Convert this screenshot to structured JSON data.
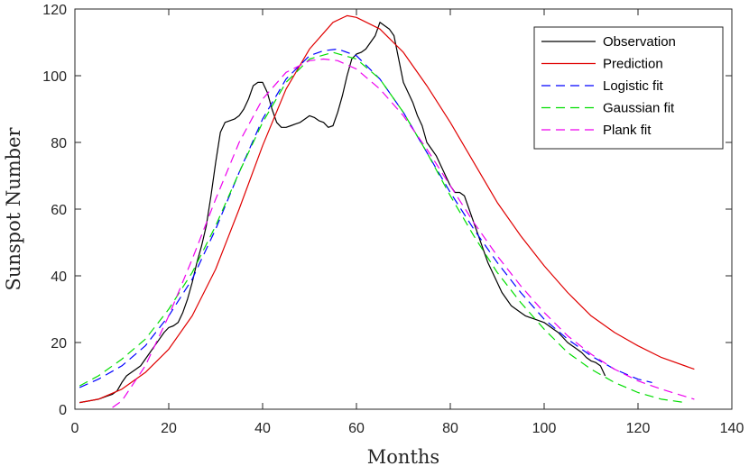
{
  "chart_data": {
    "type": "line",
    "title": "",
    "xlabel": "Months",
    "ylabel": "Sunspot Number",
    "xlim": [
      0,
      140
    ],
    "ylim": [
      0,
      120
    ],
    "xticks": [
      "0",
      "20",
      "40",
      "60",
      "80",
      "100",
      "120",
      "140"
    ],
    "yticks": [
      "0",
      "20",
      "40",
      "60",
      "80",
      "100",
      "120"
    ],
    "grid": false,
    "legend_position": "top-right",
    "series": [
      {
        "name": "Observation",
        "color": "#000000",
        "style": "solid",
        "x": [
          1,
          3,
          5,
          7,
          8,
          9,
          10,
          11,
          12,
          13,
          14,
          15,
          16,
          17,
          18,
          19,
          20,
          21,
          22,
          23,
          24,
          25,
          26,
          27,
          28,
          29,
          30,
          31,
          32,
          33,
          34,
          35,
          36,
          37,
          38,
          39,
          40,
          41,
          42,
          43,
          44,
          45,
          46,
          47,
          48,
          49,
          50,
          51,
          52,
          53,
          54,
          55,
          56,
          57,
          58,
          59,
          60,
          61,
          62,
          63,
          64,
          65,
          66,
          67,
          68,
          69,
          70,
          71,
          72,
          73,
          74,
          75,
          76,
          77,
          78,
          79,
          80,
          81,
          82,
          83,
          84,
          85,
          86,
          87,
          88,
          89,
          90,
          91,
          92,
          93,
          94,
          95,
          96,
          97,
          98,
          99,
          100,
          101,
          102,
          103,
          104,
          105,
          106,
          107,
          108,
          109,
          110,
          111,
          112,
          113
        ],
        "y": [
          2,
          2.5,
          3,
          4,
          4.5,
          5.5,
          8,
          10,
          11,
          12,
          13,
          15,
          17,
          19,
          21,
          23,
          24.5,
          25,
          26,
          29,
          33,
          38,
          44,
          49,
          55,
          64,
          74,
          83,
          86,
          86.5,
          87,
          88,
          90,
          93,
          97,
          98,
          98,
          95,
          90,
          86,
          84.5,
          84.5,
          85,
          85.5,
          86,
          87,
          88,
          87.5,
          86.5,
          86,
          84.5,
          85,
          89,
          94,
          100,
          105,
          106.5,
          107,
          108,
          110,
          112,
          116,
          115,
          114,
          112,
          105,
          98,
          95,
          92,
          88,
          85,
          80,
          78,
          76,
          73,
          70,
          67,
          65,
          65,
          64,
          60,
          56,
          52,
          48,
          44,
          41,
          38,
          35,
          33,
          31,
          30,
          29,
          28,
          27.5,
          27,
          26.5,
          26,
          25,
          24,
          23,
          21.5,
          20,
          19,
          18,
          17,
          15.5,
          14.5,
          14,
          13,
          10
        ]
      },
      {
        "name": "Prediction",
        "color": "#e00000",
        "style": "solid",
        "x": [
          1,
          5,
          10,
          15,
          20,
          25,
          30,
          35,
          40,
          45,
          50,
          55,
          58,
          60,
          65,
          70,
          75,
          80,
          85,
          90,
          95,
          100,
          105,
          110,
          115,
          120,
          125,
          132
        ],
        "y": [
          2,
          3,
          6,
          11,
          18,
          28,
          42,
          60,
          79,
          96,
          108,
          116,
          118,
          117.5,
          114,
          107,
          97,
          86,
          74,
          62,
          52,
          43,
          35,
          28,
          23,
          19,
          15.5,
          12
        ]
      },
      {
        "name": "Logistic fit",
        "color": "#0000ff",
        "style": "dashed",
        "x": [
          1,
          5,
          10,
          15,
          20,
          25,
          30,
          35,
          40,
          45,
          50,
          53,
          56,
          60,
          65,
          70,
          75,
          80,
          85,
          90,
          95,
          100,
          105,
          110,
          115,
          120,
          123
        ],
        "y": [
          6.5,
          9,
          13,
          19,
          28,
          39,
          54,
          71,
          87,
          99,
          106,
          107.5,
          108,
          106,
          99,
          89,
          77,
          65,
          54,
          44,
          35,
          27,
          21,
          16,
          12,
          9,
          8
        ]
      },
      {
        "name": "Gaussian fit",
        "color": "#00dd00",
        "style": "dashed",
        "x": [
          1,
          5,
          10,
          15,
          20,
          25,
          30,
          35,
          40,
          45,
          50,
          55,
          60,
          65,
          70,
          75,
          80,
          85,
          90,
          95,
          100,
          105,
          110,
          115,
          120,
          125,
          130
        ],
        "y": [
          7,
          10,
          15,
          21,
          30,
          41,
          55,
          71,
          86,
          98,
          105,
          107,
          105,
          99,
          89,
          77,
          64,
          52,
          41,
          32,
          24,
          17,
          12,
          8,
          5,
          3,
          2
        ]
      },
      {
        "name": "Plank fit",
        "color": "#ee00ee",
        "style": "dashed",
        "x": [
          8,
          10,
          15,
          20,
          25,
          30,
          35,
          40,
          45,
          50,
          53,
          56,
          60,
          65,
          70,
          75,
          80,
          85,
          90,
          95,
          100,
          105,
          110,
          115,
          120,
          125,
          132
        ],
        "y": [
          0.5,
          2.5,
          13,
          28,
          45,
          63,
          80,
          93,
          101,
          104.5,
          105,
          104.5,
          102,
          96,
          88,
          78,
          67,
          56,
          46,
          37,
          29,
          22,
          16.5,
          12,
          8.5,
          6,
          3
        ]
      }
    ]
  }
}
